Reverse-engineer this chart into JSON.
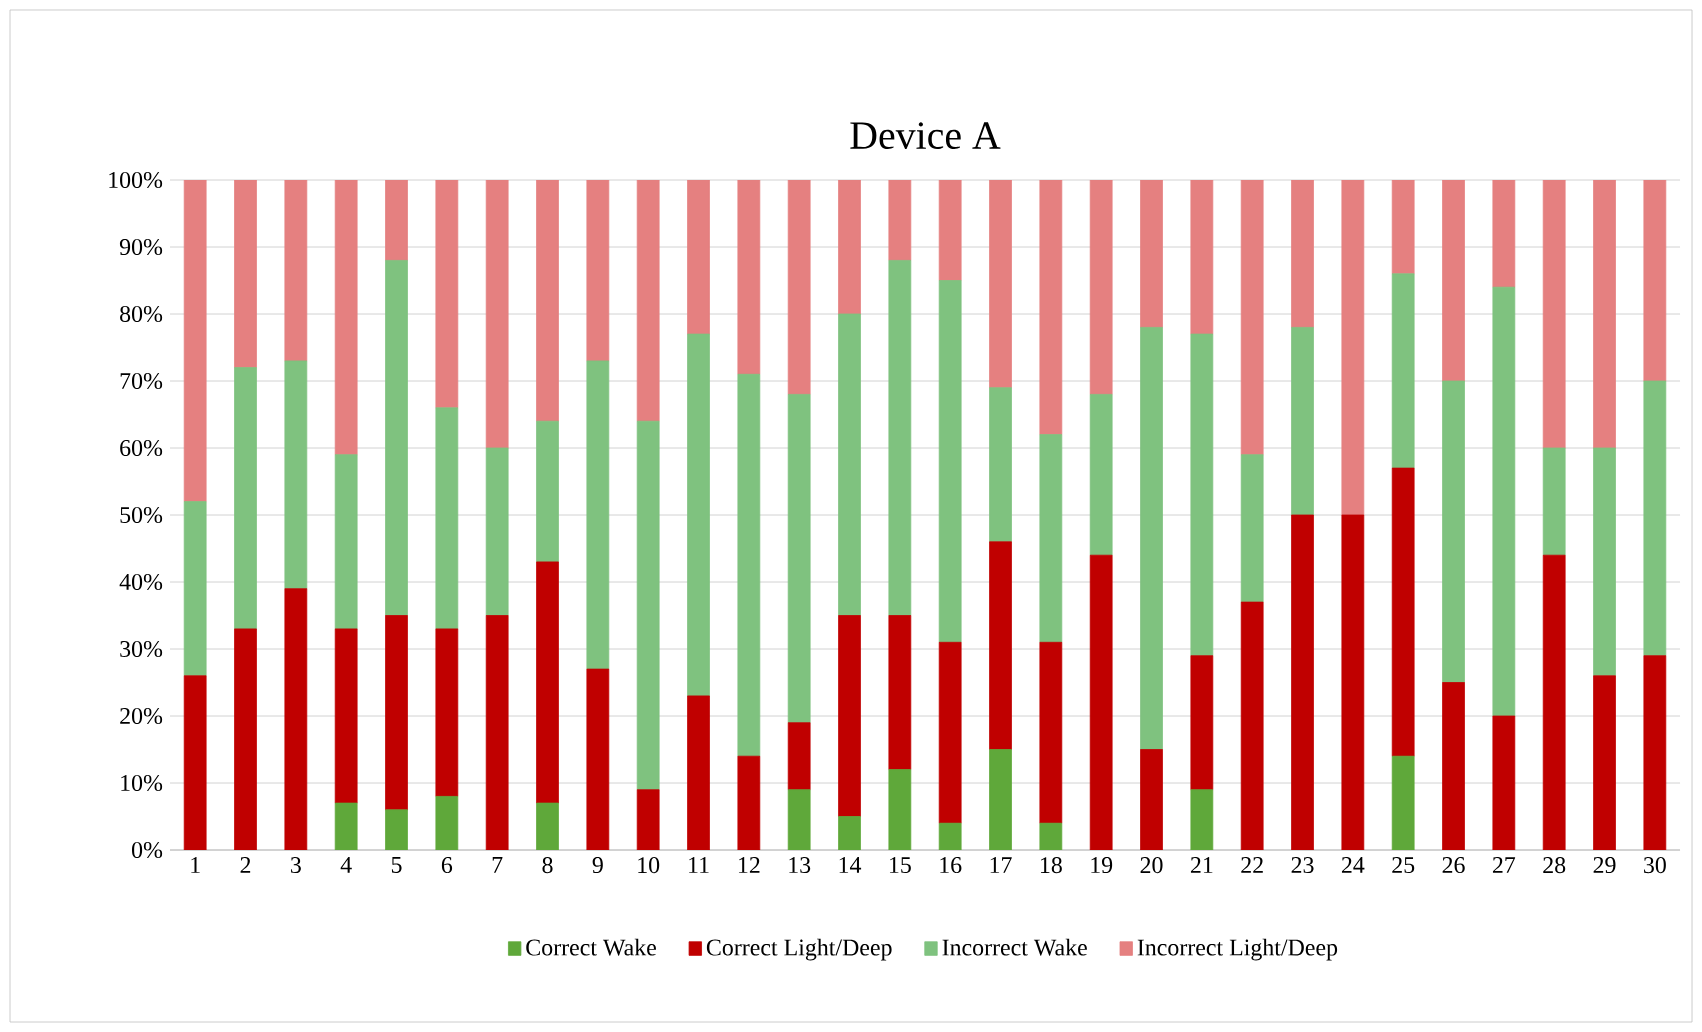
{
  "chart_data": {
    "type": "bar",
    "title": "Device A",
    "stacked": true,
    "grid": "y",
    "legend": "bottom",
    "categories": [
      "1",
      "2",
      "3",
      "4",
      "5",
      "6",
      "7",
      "8",
      "9",
      "10",
      "11",
      "12",
      "13",
      "14",
      "15",
      "16",
      "17",
      "18",
      "19",
      "20",
      "21",
      "22",
      "23",
      "24",
      "25",
      "26",
      "27",
      "28",
      "29",
      "30"
    ],
    "ylim": [
      0,
      100
    ],
    "yticks": [
      {
        "value": 0,
        "label": "0%"
      },
      {
        "value": 10,
        "label": "10%"
      },
      {
        "value": 20,
        "label": "20%"
      },
      {
        "value": 30,
        "label": "30%"
      },
      {
        "value": 40,
        "label": "40%"
      },
      {
        "value": 50,
        "label": "50%"
      },
      {
        "value": 60,
        "label": "60%"
      },
      {
        "value": 70,
        "label": "70%"
      },
      {
        "value": 80,
        "label": "80%"
      },
      {
        "value": 90,
        "label": "90%"
      },
      {
        "value": 100,
        "label": "100%"
      }
    ],
    "series": [
      {
        "name": "Correct Wake",
        "color": "#5fa83a",
        "values": [
          0,
          0,
          0,
          7,
          6,
          8,
          0,
          7,
          0,
          0,
          0,
          0,
          9,
          5,
          12,
          4,
          15,
          4,
          0,
          0,
          9,
          0,
          0,
          0,
          14,
          0,
          0,
          0,
          0,
          0
        ]
      },
      {
        "name": "Correct Light/Deep",
        "color": "#c00000",
        "values": [
          26,
          33,
          39,
          26,
          29,
          25,
          35,
          36,
          27,
          9,
          23,
          14,
          10,
          30,
          23,
          27,
          31,
          27,
          44,
          15,
          20,
          37,
          50,
          50,
          43,
          25,
          20,
          44,
          26,
          29
        ]
      },
      {
        "name": "Incorrect Wake",
        "color": "#7fc27f",
        "values": [
          26,
          39,
          34,
          26,
          53,
          33,
          25,
          21,
          46,
          55,
          54,
          57,
          49,
          45,
          53,
          54,
          23,
          31,
          24,
          63,
          48,
          22,
          28,
          0,
          29,
          45,
          64,
          16,
          34,
          41
        ]
      },
      {
        "name": "Incorrect Light/Deep",
        "color": "#e58080",
        "values": [
          48,
          28,
          27,
          41,
          12,
          34,
          40,
          36,
          27,
          36,
          23,
          29,
          32,
          20,
          12,
          15,
          31,
          38,
          32,
          22,
          23,
          41,
          22,
          50,
          14,
          30,
          16,
          40,
          40,
          30
        ]
      }
    ]
  }
}
